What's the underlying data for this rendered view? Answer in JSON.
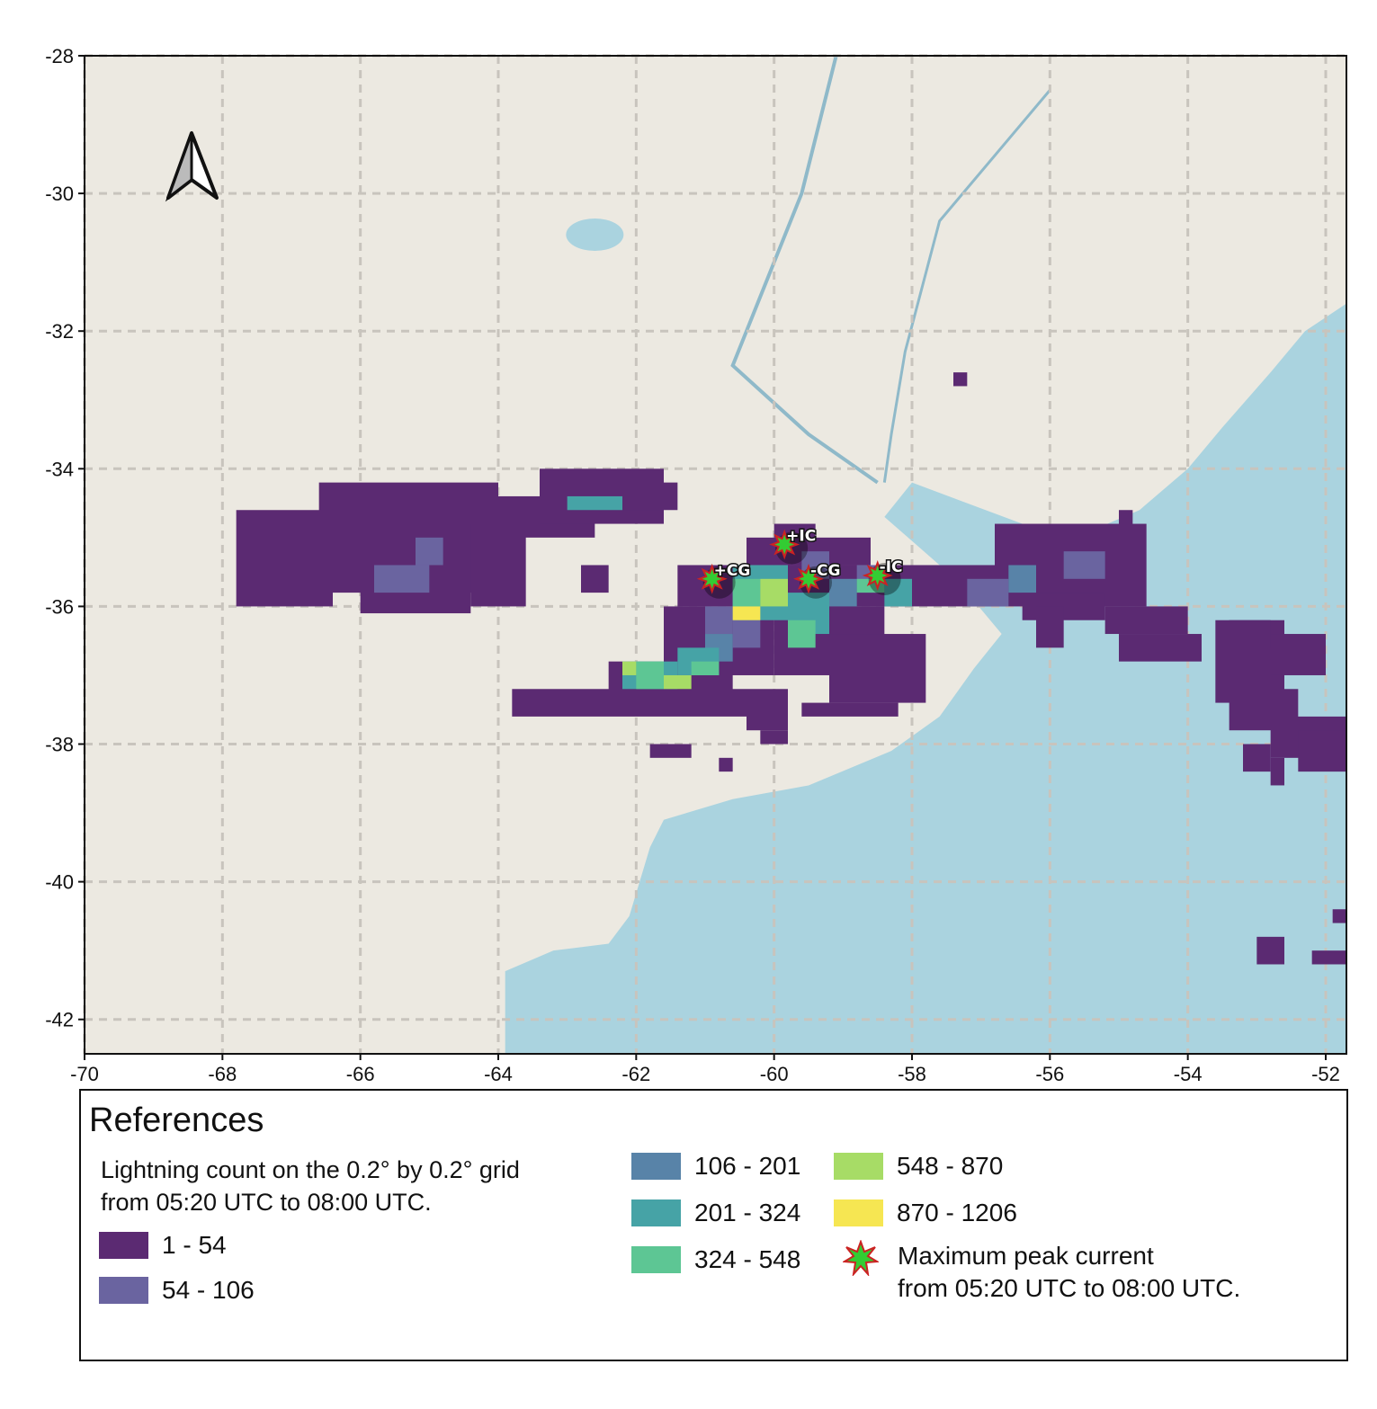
{
  "map": {
    "x_ticks": [
      -70,
      -68,
      -66,
      -64,
      -62,
      -60,
      -58,
      -56,
      -54,
      -52
    ],
    "y_ticks": [
      -28,
      -30,
      -32,
      -34,
      -36,
      -38,
      -40,
      -42
    ],
    "x_range": [
      -70,
      -51.7
    ],
    "y_range": [
      -42.5,
      -28
    ],
    "grid": true,
    "north_arrow": "north-arrow-icon",
    "colors": {
      "land": "#ece9e1",
      "sea": "#aad3df",
      "grid": "#c8c4bd",
      "frame": "#111111",
      "marker_star": "#33cc33",
      "marker_outline": "#cc2222"
    },
    "markers": [
      {
        "label": "+CG",
        "lon": -60.9,
        "lat": -35.6
      },
      {
        "label": "+IC",
        "lon": -59.85,
        "lat": -35.1
      },
      {
        "label": "-CG",
        "lon": -59.5,
        "lat": -35.6
      },
      {
        "label": "-IC",
        "lon": -58.5,
        "lat": -35.55
      }
    ]
  },
  "legend": {
    "title": "References",
    "subtitle_line1": "Lightning count on the 0.2° by  0.2° grid",
    "subtitle_line2": "from 05:20 UTC to  08:00 UTC.",
    "classes": [
      {
        "label": "1 - 54",
        "color": "#5b2a72"
      },
      {
        "label": "54 - 106",
        "color": "#6a64a0"
      },
      {
        "label": "106 - 201",
        "color": "#5883a8"
      },
      {
        "label": "201 - 324",
        "color": "#46a3a6"
      },
      {
        "label": "324 - 548",
        "color": "#5dc694"
      },
      {
        "label": "548 - 870",
        "color": "#a7dc66"
      },
      {
        "label": "870 - 1206",
        "color": "#f6e652"
      }
    ],
    "peak_line1": "Maximum peak current",
    "peak_line2": "from 05:20 UTC to  08:00 UTC."
  }
}
